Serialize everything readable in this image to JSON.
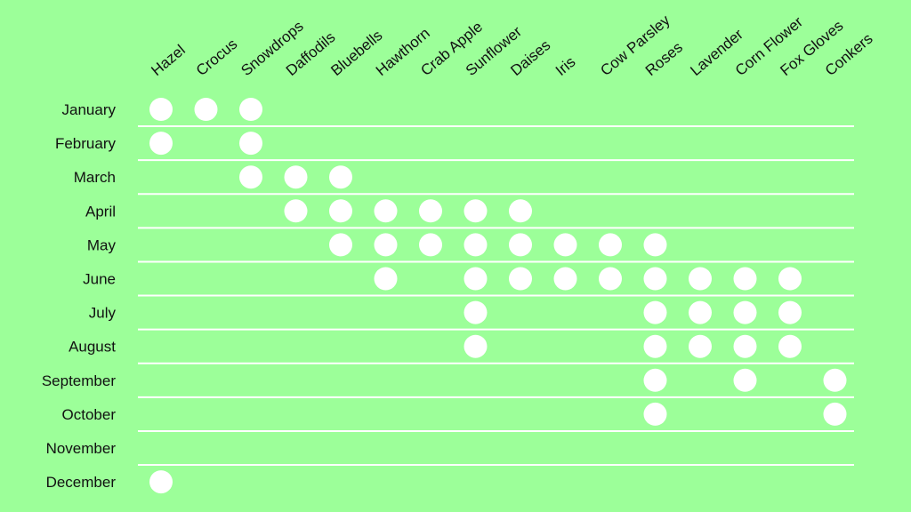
{
  "colors": {
    "background": "#9cff99",
    "dot": "#ffffff",
    "gridline": "#ffffff",
    "text": "#111111"
  },
  "chart_data": {
    "type": "table",
    "title": "",
    "columns": [
      "Hazel",
      "Crocus",
      "Snowdrops",
      "Daffodils",
      "Bluebells",
      "Hawthorn",
      "Crab Apple",
      "Sunflower",
      "Daises",
      "Iris",
      "Cow Parsley",
      "Roses",
      "Lavender",
      "Corn Flower",
      "Fox Gloves",
      "Conkers"
    ],
    "rows": [
      "January",
      "February",
      "March",
      "April",
      "May",
      "June",
      "July",
      "August",
      "September",
      "October",
      "November",
      "December"
    ],
    "cells": [
      [
        1,
        1,
        1,
        0,
        0,
        0,
        0,
        0,
        0,
        0,
        0,
        0,
        0,
        0,
        0,
        0
      ],
      [
        1,
        0,
        1,
        0,
        0,
        0,
        0,
        0,
        0,
        0,
        0,
        0,
        0,
        0,
        0,
        0
      ],
      [
        0,
        0,
        1,
        1,
        1,
        0,
        0,
        0,
        0,
        0,
        0,
        0,
        0,
        0,
        0,
        0
      ],
      [
        0,
        0,
        0,
        1,
        1,
        1,
        1,
        1,
        1,
        0,
        0,
        0,
        0,
        0,
        0,
        0
      ],
      [
        0,
        0,
        0,
        0,
        1,
        1,
        1,
        1,
        1,
        1,
        1,
        1,
        0,
        0,
        0,
        0
      ],
      [
        0,
        0,
        0,
        0,
        0,
        1,
        0,
        1,
        1,
        1,
        1,
        1,
        1,
        1,
        1,
        0
      ],
      [
        0,
        0,
        0,
        0,
        0,
        0,
        0,
        1,
        0,
        0,
        0,
        1,
        1,
        1,
        1,
        0
      ],
      [
        0,
        0,
        0,
        0,
        0,
        0,
        0,
        1,
        0,
        0,
        0,
        1,
        1,
        1,
        1,
        0
      ],
      [
        0,
        0,
        0,
        0,
        0,
        0,
        0,
        0,
        0,
        0,
        0,
        1,
        0,
        1,
        0,
        1
      ],
      [
        0,
        0,
        0,
        0,
        0,
        0,
        0,
        0,
        0,
        0,
        0,
        1,
        0,
        0,
        0,
        1
      ],
      [
        0,
        0,
        0,
        0,
        0,
        0,
        0,
        0,
        0,
        0,
        0,
        0,
        0,
        0,
        0,
        0
      ],
      [
        1,
        0,
        0,
        0,
        0,
        0,
        0,
        0,
        0,
        0,
        0,
        0,
        0,
        0,
        0,
        0
      ]
    ],
    "gridlines": true
  }
}
